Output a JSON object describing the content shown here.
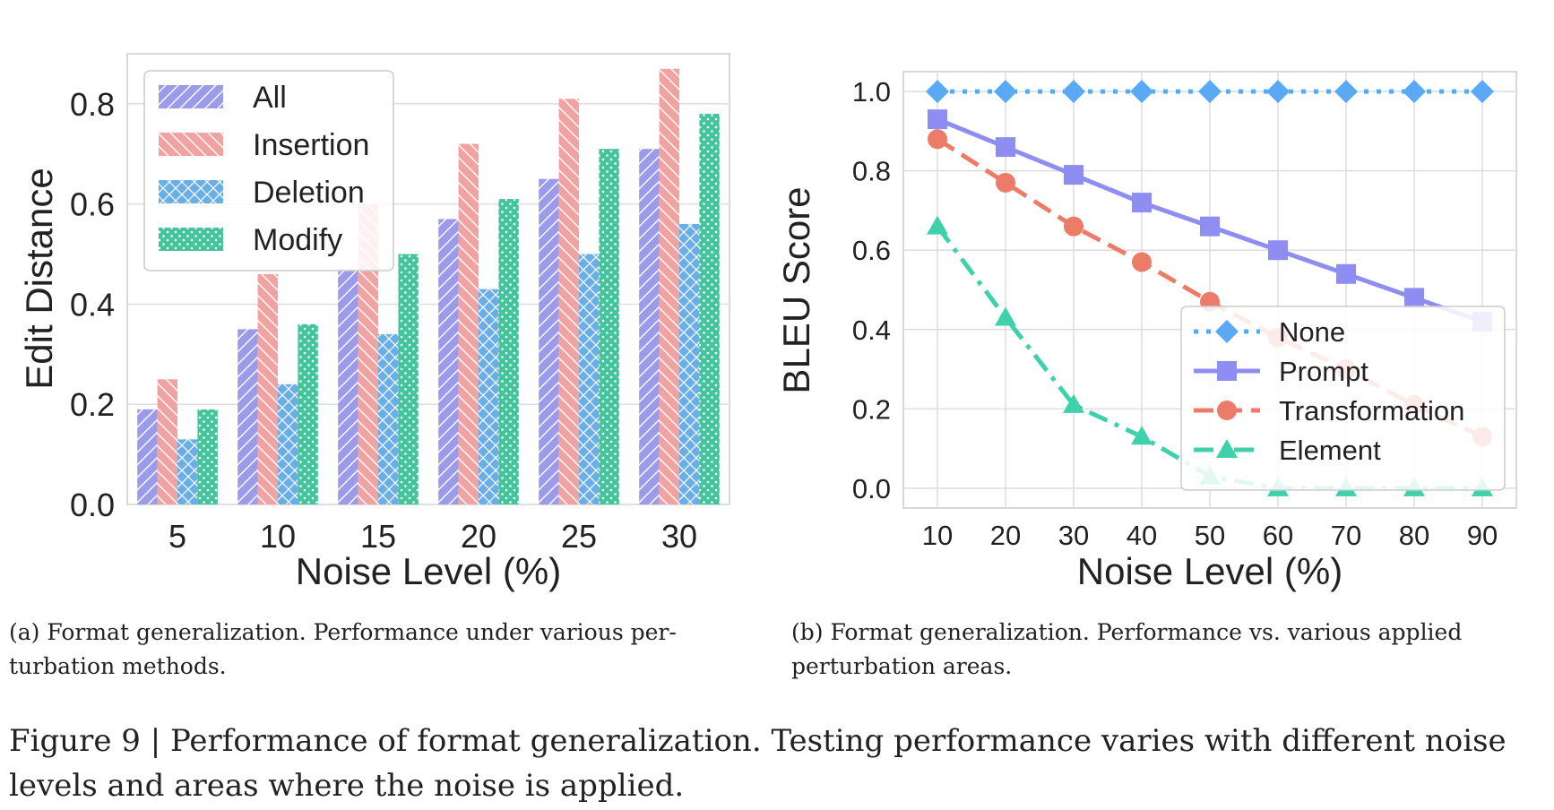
{
  "chart_data": [
    {
      "type": "bar",
      "xlabel": "Noise Level (%)",
      "ylabel": "Edit Distance",
      "categories": [
        "5",
        "10",
        "15",
        "20",
        "25",
        "30"
      ],
      "ylim": [
        0,
        0.9
      ],
      "yticks": [
        "0.0",
        "0.2",
        "0.4",
        "0.6",
        "0.8"
      ],
      "legend_position": "top-left",
      "grid": true,
      "series": [
        {
          "name": "All",
          "color": "#9b9bea",
          "hatch": "diagonal",
          "values": [
            0.19,
            0.35,
            0.47,
            0.57,
            0.65,
            0.71
          ]
        },
        {
          "name": "Insertion",
          "color": "#f0a3a0",
          "hatch": "back-diagonal",
          "values": [
            0.25,
            0.46,
            0.6,
            0.72,
            0.81,
            0.87
          ]
        },
        {
          "name": "Deletion",
          "color": "#6aaee8",
          "hatch": "cross",
          "values": [
            0.13,
            0.24,
            0.34,
            0.43,
            0.5,
            0.56
          ]
        },
        {
          "name": "Modify",
          "color": "#44c49a",
          "hatch": "dots",
          "values": [
            0.19,
            0.36,
            0.5,
            0.61,
            0.71,
            0.78
          ]
        }
      ]
    },
    {
      "type": "line",
      "xlabel": "Noise Level (%)",
      "ylabel": "BLEU Score",
      "x": [
        10,
        20,
        30,
        40,
        50,
        60,
        70,
        80,
        90
      ],
      "ylim": [
        -0.05,
        1.05
      ],
      "yticks": [
        "0.0",
        "0.2",
        "0.4",
        "0.6",
        "0.8",
        "1.0"
      ],
      "legend_position": "lower-right",
      "grid": true,
      "series": [
        {
          "name": "None",
          "color": "#5aa9f5",
          "marker": "diamond",
          "linestyle": "dotted",
          "values": [
            1.0,
            1.0,
            1.0,
            1.0,
            1.0,
            1.0,
            1.0,
            1.0,
            1.0
          ]
        },
        {
          "name": "Prompt",
          "color": "#8e8ef2",
          "marker": "square",
          "linestyle": "solid",
          "values": [
            0.93,
            0.86,
            0.79,
            0.72,
            0.66,
            0.6,
            0.54,
            0.48,
            0.42
          ]
        },
        {
          "name": "Transformation",
          "color": "#ec7b67",
          "marker": "circle",
          "linestyle": "dashed",
          "values": [
            0.88,
            0.77,
            0.66,
            0.57,
            0.47,
            0.38,
            0.3,
            0.21,
            0.13
          ]
        },
        {
          "name": "Element",
          "color": "#3fd1ab",
          "marker": "triangle",
          "linestyle": "dashdot",
          "values": [
            0.66,
            0.43,
            0.21,
            0.13,
            0.03,
            0.0,
            0.0,
            0.0,
            0.0
          ]
        }
      ]
    }
  ],
  "captions": {
    "a_lines": [
      "(a) Format generalization. Performance under various per-",
      "turbation methods."
    ],
    "b_lines": [
      "(b) Format generalization. Performance vs. various applied",
      "perturbation areas."
    ],
    "figure_lines": [
      "Figure 9 | Performance of format generalization. Testing performance varies with different noise",
      "levels and areas where the noise is applied."
    ]
  }
}
